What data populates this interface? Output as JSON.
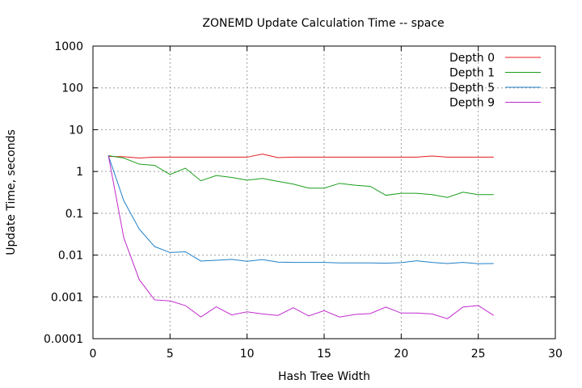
{
  "chart_data": {
    "type": "line",
    "title": "ZONEMD Update Calculation Time -- space",
    "xlabel": "Hash Tree Width",
    "ylabel": "Update Time, seconds",
    "xlim": [
      0,
      30
    ],
    "ylim": [
      0.0001,
      1000
    ],
    "yscale": "log",
    "grid": true,
    "legend_position": "top-right",
    "x_ticks": [
      0,
      5,
      10,
      15,
      20,
      25,
      30
    ],
    "x_tick_labels": [
      "0",
      "5",
      "10",
      "15",
      "20",
      "25",
      "30"
    ],
    "y_ticks": [
      0.0001,
      0.001,
      0.01,
      0.1,
      1,
      10,
      100,
      1000
    ],
    "y_tick_labels": [
      "0.0001",
      "0.001",
      "0.01",
      "0.1",
      "1",
      "10",
      "100",
      "1000"
    ],
    "x": [
      1,
      2,
      3,
      4,
      5,
      6,
      7,
      8,
      9,
      10,
      11,
      12,
      13,
      14,
      15,
      16,
      17,
      18,
      19,
      20,
      21,
      22,
      23,
      24,
      25,
      26
    ],
    "series": [
      {
        "name": "Depth 0",
        "color": "#e41a1c",
        "values": [
          2.3,
          2.25,
          2.1,
          2.2,
          2.2,
          2.2,
          2.2,
          2.2,
          2.2,
          2.2,
          2.6,
          2.15,
          2.2,
          2.2,
          2.2,
          2.2,
          2.2,
          2.2,
          2.2,
          2.2,
          2.2,
          2.35,
          2.2,
          2.2,
          2.2,
          2.2
        ]
      },
      {
        "name": "Depth 1",
        "color": "#1a9e1a",
        "values": [
          2.4,
          2.1,
          1.5,
          1.4,
          0.85,
          1.2,
          0.6,
          0.8,
          0.72,
          0.62,
          0.68,
          0.58,
          0.5,
          0.4,
          0.4,
          0.52,
          0.47,
          0.44,
          0.27,
          0.3,
          0.3,
          0.28,
          0.24,
          0.32,
          0.28,
          0.28
        ]
      },
      {
        "name": "Depth 5",
        "color": "#1e7fc8",
        "values": [
          2.4,
          0.2,
          0.042,
          0.016,
          0.0115,
          0.012,
          0.0072,
          0.0075,
          0.0079,
          0.0071,
          0.0078,
          0.0068,
          0.0067,
          0.0067,
          0.0067,
          0.0065,
          0.0065,
          0.0065,
          0.0064,
          0.0066,
          0.0073,
          0.0067,
          0.0063,
          0.0067,
          0.0062,
          0.0063
        ]
      },
      {
        "name": "Depth 9",
        "color": "#c02bcd",
        "values": [
          2.4,
          0.026,
          0.0026,
          0.00085,
          0.0008,
          0.00062,
          0.00033,
          0.00058,
          0.00037,
          0.00044,
          0.00039,
          0.00036,
          0.00055,
          0.00035,
          0.00047,
          0.00033,
          0.00038,
          0.0004,
          0.00057,
          0.00041,
          0.00041,
          0.00039,
          0.0003,
          0.00057,
          0.00062,
          0.00036
        ]
      }
    ]
  }
}
